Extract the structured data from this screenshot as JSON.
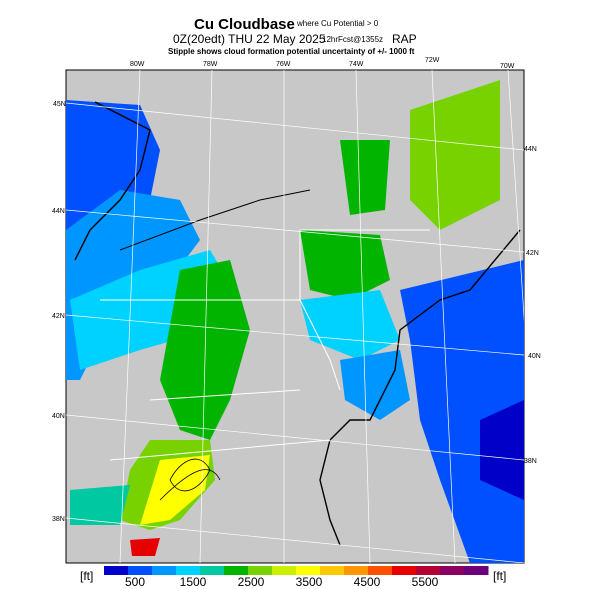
{
  "header": {
    "title": "Cu Cloudbase",
    "title_note": "where Cu Potential > 0",
    "valid": "0Z(20edt) THU 22 May 2025",
    "forecast": "12hrFcst@1355z",
    "model": "RAP",
    "subtitle": "Stipple shows cloud formation potential uncertainty of +/- 1000 ft"
  },
  "map": {
    "lon_labels": [
      "80W",
      "78W",
      "76W",
      "74W",
      "72W",
      "70W"
    ],
    "lat_labels_left": [
      "45N",
      "44N",
      "42N",
      "40N",
      "38N"
    ],
    "lat_labels_right": [
      "44N",
      "42N",
      "40N",
      "38N"
    ]
  },
  "colorbar": {
    "unit_left": "[ft]",
    "unit_right": "[ft]",
    "labels": [
      500,
      1500,
      2500,
      3500,
      4500,
      5500
    ],
    "colors": [
      "#0000c8",
      "#0050ff",
      "#0096ff",
      "#00d2ff",
      "#00c8a0",
      "#00b400",
      "#78d200",
      "#c8f000",
      "#ffff00",
      "#ffc800",
      "#ff9600",
      "#ff5000",
      "#e60000",
      "#b40032",
      "#8c0064",
      "#6e0078"
    ]
  }
}
